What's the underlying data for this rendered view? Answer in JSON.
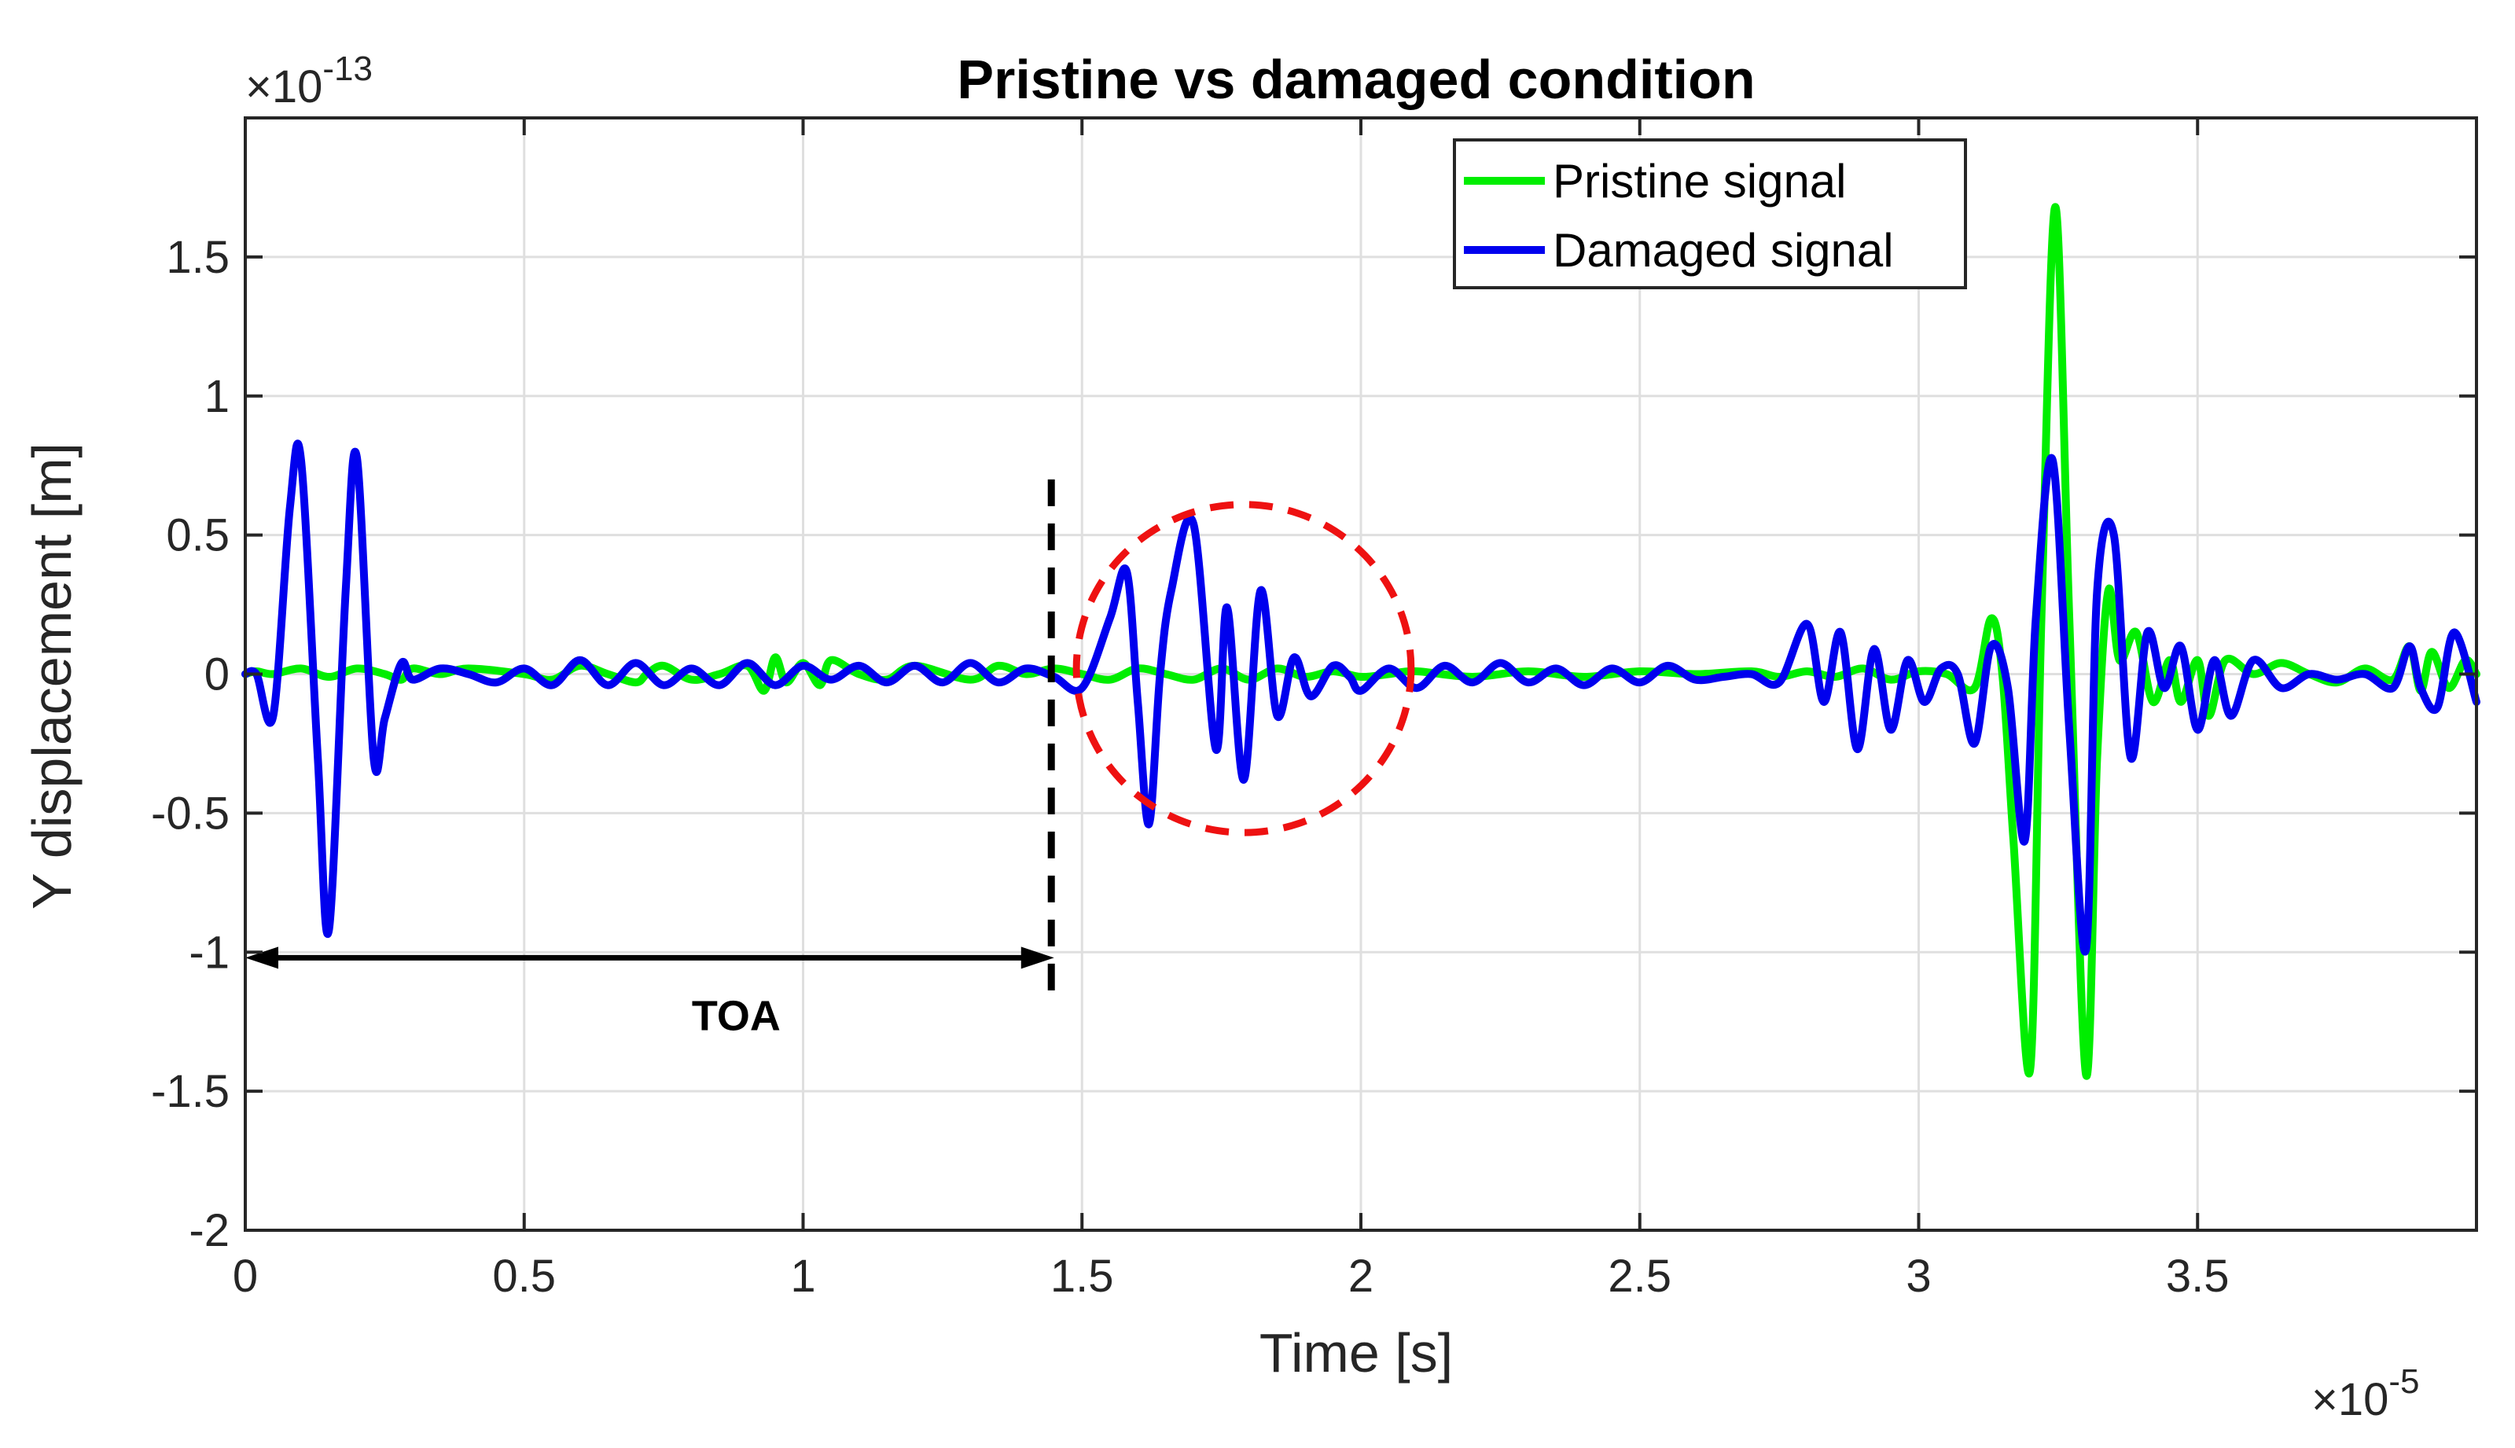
{
  "chart_data": {
    "type": "line",
    "title": "Pristine vs damaged condition",
    "xlabel": "Time [s]",
    "ylabel": "Y displacement [m]",
    "x_exponent": "×10",
    "x_exponent_power": "-5",
    "y_exponent": "×10",
    "y_exponent_power": "-13",
    "xlim": [
      0,
      4.0
    ],
    "ylim": [
      -2,
      2
    ],
    "x_ticks": [
      0,
      0.5,
      1,
      1.5,
      2,
      2.5,
      3,
      3.5
    ],
    "x_tick_labels": [
      "0",
      "0.5",
      "1",
      "1.5",
      "2",
      "2.5",
      "3",
      "3.5"
    ],
    "y_ticks": [
      -2,
      -1.5,
      -1,
      -0.5,
      0,
      0.5,
      1,
      1.5
    ],
    "y_tick_labels": [
      "-2",
      "-1.5",
      "-1",
      "-0.5",
      "0",
      "0.5",
      "1",
      "1.5"
    ],
    "grid": true,
    "legend_position": "top-right",
    "series": [
      {
        "name": "Pristine signal",
        "color": "#00ee00",
        "x": [
          0,
          0.02,
          0.05,
          0.1,
          0.15,
          0.2,
          0.25,
          0.28,
          0.3,
          0.35,
          0.4,
          0.5,
          0.55,
          0.6,
          0.65,
          0.7,
          0.72,
          0.75,
          0.8,
          0.85,
          0.9,
          0.93,
          0.95,
          0.97,
          1.0,
          1.03,
          1.05,
          1.1,
          1.15,
          1.2,
          1.3,
          1.35,
          1.4,
          1.45,
          1.5,
          1.55,
          1.6,
          1.65,
          1.7,
          1.75,
          1.8,
          1.85,
          1.9,
          1.95,
          2.0,
          2.05,
          2.1,
          2.2,
          2.3,
          2.4,
          2.5,
          2.6,
          2.7,
          2.75,
          2.8,
          2.85,
          2.9,
          2.95,
          3.0,
          3.05,
          3.1,
          3.13,
          3.15,
          3.17,
          3.2,
          3.22,
          3.245,
          3.27,
          3.3,
          3.32,
          3.34,
          3.36,
          3.39,
          3.42,
          3.45,
          3.47,
          3.5,
          3.52,
          3.55,
          3.6,
          3.65,
          3.7,
          3.75,
          3.8,
          3.85,
          3.88,
          3.9,
          3.92,
          3.95,
          3.98,
          4.0
        ],
        "y": [
          0,
          0.01,
          0.0,
          0.02,
          -0.01,
          0.02,
          0.0,
          -0.02,
          0.02,
          0.0,
          0.02,
          0.0,
          -0.02,
          0.03,
          0.0,
          -0.03,
          0.0,
          0.03,
          -0.02,
          0.0,
          0.03,
          -0.06,
          0.06,
          -0.03,
          0.04,
          -0.04,
          0.05,
          0.0,
          -0.02,
          0.03,
          -0.02,
          0.03,
          0.0,
          0.02,
          0.0,
          -0.02,
          0.02,
          0.0,
          -0.02,
          0.02,
          -0.02,
          0.02,
          -0.01,
          0.01,
          -0.01,
          0.0,
          0.01,
          -0.01,
          0.01,
          -0.01,
          0.01,
          0.0,
          0.01,
          -0.01,
          0.01,
          -0.01,
          0.02,
          -0.02,
          0.01,
          0.0,
          -0.05,
          0.2,
          0.0,
          -0.6,
          -1.42,
          0.2,
          1.68,
          0.2,
          -1.44,
          -0.3,
          0.3,
          0.05,
          0.15,
          -0.1,
          0.05,
          -0.1,
          0.05,
          -0.15,
          0.05,
          0.0,
          0.04,
          0.0,
          -0.03,
          0.02,
          -0.02,
          0.1,
          -0.06,
          0.08,
          -0.05,
          0.05,
          0.0
        ]
      },
      {
        "name": "Damaged signal",
        "color": "#0000ee",
        "x": [
          0,
          0.02,
          0.05,
          0.08,
          0.1,
          0.13,
          0.15,
          0.18,
          0.2,
          0.23,
          0.25,
          0.28,
          0.3,
          0.35,
          0.4,
          0.45,
          0.5,
          0.55,
          0.6,
          0.65,
          0.7,
          0.75,
          0.8,
          0.85,
          0.9,
          0.95,
          1.0,
          1.05,
          1.1,
          1.15,
          1.2,
          1.25,
          1.3,
          1.35,
          1.4,
          1.45,
          1.5,
          1.55,
          1.58,
          1.6,
          1.62,
          1.64,
          1.66,
          1.7,
          1.74,
          1.76,
          1.79,
          1.82,
          1.85,
          1.88,
          1.91,
          1.95,
          1.98,
          2.0,
          2.05,
          2.1,
          2.15,
          2.2,
          2.25,
          2.3,
          2.35,
          2.4,
          2.45,
          2.5,
          2.55,
          2.6,
          2.65,
          2.7,
          2.75,
          2.8,
          2.83,
          2.86,
          2.89,
          2.92,
          2.95,
          2.98,
          3.01,
          3.04,
          3.07,
          3.1,
          3.13,
          3.16,
          3.19,
          3.21,
          3.24,
          3.27,
          3.3,
          3.32,
          3.35,
          3.38,
          3.41,
          3.44,
          3.47,
          3.5,
          3.53,
          3.56,
          3.6,
          3.65,
          3.7,
          3.75,
          3.8,
          3.85,
          3.88,
          3.9,
          3.93,
          3.96,
          4.0
        ],
        "y": [
          0,
          0.0,
          -0.15,
          0.6,
          0.77,
          -0.3,
          -0.92,
          0.3,
          0.78,
          -0.3,
          -0.16,
          0.04,
          -0.02,
          0.02,
          0.0,
          -0.03,
          0.02,
          -0.04,
          0.05,
          -0.04,
          0.04,
          -0.04,
          0.02,
          -0.04,
          0.04,
          -0.04,
          0.03,
          -0.02,
          0.03,
          -0.03,
          0.03,
          -0.03,
          0.04,
          -0.03,
          0.02,
          -0.01,
          -0.05,
          0.2,
          0.37,
          -0.1,
          -0.54,
          0.0,
          0.3,
          0.54,
          -0.27,
          0.24,
          -0.38,
          0.3,
          -0.15,
          0.06,
          -0.08,
          0.03,
          -0.01,
          -0.06,
          0.02,
          -0.05,
          0.03,
          -0.03,
          0.04,
          -0.03,
          0.02,
          -0.04,
          0.02,
          -0.03,
          0.03,
          -0.02,
          -0.01,
          0.0,
          -0.03,
          0.18,
          -0.1,
          0.15,
          -0.27,
          0.09,
          -0.2,
          0.05,
          -0.1,
          0.02,
          0.0,
          -0.25,
          0.1,
          -0.05,
          -0.6,
          0.2,
          0.77,
          -0.2,
          -0.99,
          0.3,
          0.5,
          -0.3,
          0.15,
          -0.05,
          0.1,
          -0.2,
          0.05,
          -0.15,
          0.05,
          -0.05,
          0.0,
          -0.02,
          0.0,
          -0.05,
          0.1,
          -0.05,
          -0.12,
          0.15,
          -0.1
        ]
      }
    ],
    "annotations": {
      "toa_label": "TOA",
      "toa_start_x": 0,
      "toa_end_x": 1.45,
      "toa_y": -1.02,
      "toa_dashed_x": 1.445,
      "toa_dashed_y_range": [
        -1.15,
        0.7
      ],
      "damage_circle_center": [
        1.79,
        0.02
      ],
      "damage_circle_radius_x": 0.3,
      "damage_circle_radius_y": 0.59
    }
  },
  "colors": {
    "axis": "#262626",
    "grid": "#dfdfdf",
    "annotation_line": "#000000",
    "damage_circle": "#ee1111"
  }
}
